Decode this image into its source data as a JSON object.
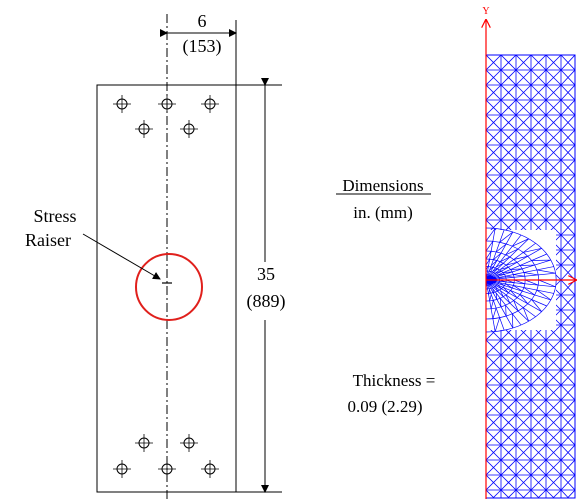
{
  "colors": {
    "line": "#000000",
    "mesh": "#0000ff",
    "axis": "#ff0000",
    "highlight_circle": "#e0201c",
    "background": "#ffffff"
  },
  "specimen_drawing": {
    "width_dim": {
      "value": "6",
      "metric": "(153)"
    },
    "height_dim": {
      "value": "35",
      "metric": "(889)"
    },
    "stress_raiser_label": {
      "line1": "Stress",
      "line2": "Raiser"
    }
  },
  "legend": {
    "title": "Dimensions",
    "units": "in. (mm)",
    "thickness_line1": "Thickness =",
    "thickness_line2": "0.09 (2.29)"
  },
  "mesh": {
    "y_axis_label": "Y",
    "elements": "triangular",
    "refinement": "concentrated at stress raiser"
  }
}
